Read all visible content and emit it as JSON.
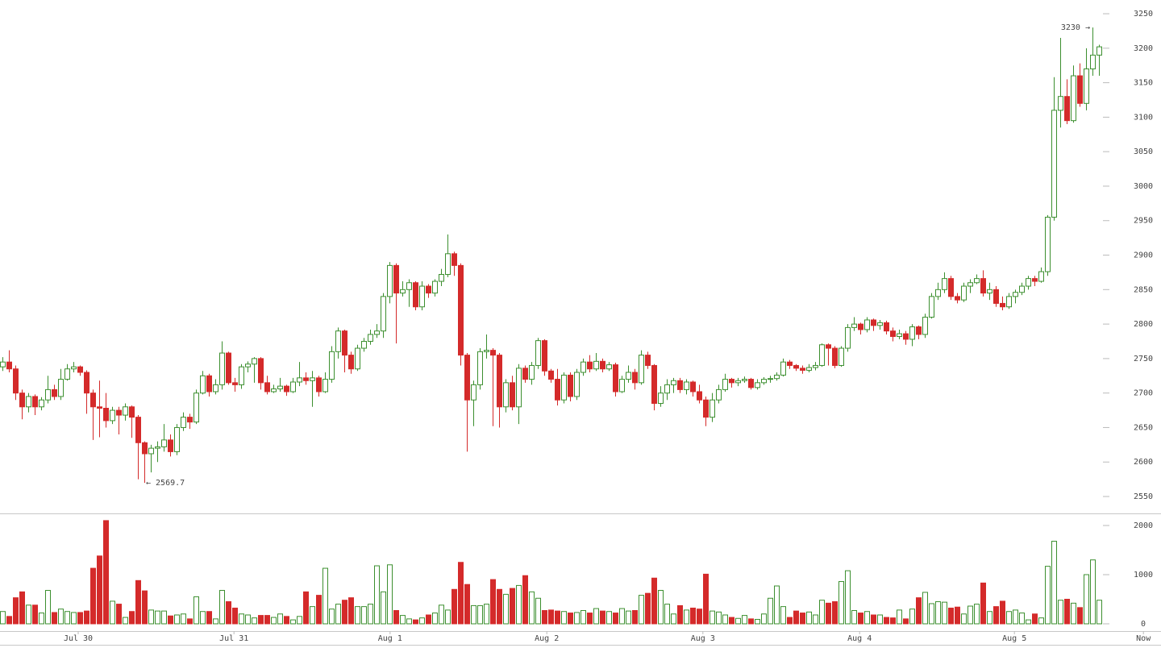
{
  "chart_data": {
    "type": "candlestick",
    "up_color": "#3c8f2f",
    "down_color": "#d42a2a",
    "xlim": [
      -0.375,
      179.625
    ],
    "xticks": [
      {
        "value": 11.75,
        "label": "Jul 30"
      },
      {
        "value": 35.9,
        "label": "Jul 31"
      },
      {
        "value": 60.1,
        "label": "Aug 1"
      },
      {
        "value": 84.4,
        "label": "Aug 2"
      },
      {
        "value": 108.6,
        "label": "Aug 3"
      },
      {
        "value": 132.9,
        "label": "Aug 4"
      },
      {
        "value": 156.9,
        "label": "Aug 5"
      },
      {
        "value": 176.9,
        "label": "Now"
      }
    ],
    "ylim": [
      2525.5,
      3269.9
    ],
    "yticks": [
      2550,
      2600,
      2650,
      2700,
      2750,
      2800,
      2850,
      2900,
      2950,
      3000,
      3050,
      3100,
      3150,
      3200,
      3250
    ],
    "y2lim": [
      -148,
      2197
    ],
    "y2ticks": [
      0,
      1000,
      2000
    ],
    "annotations": [
      {
        "text": "← 2569.7"
      },
      {
        "text": "3230 →"
      }
    ],
    "open": [
      2738,
      2745,
      2735,
      2700,
      2680,
      2695,
      2680,
      2690,
      2705,
      2695,
      2720,
      2735,
      2738,
      2730,
      2700,
      2680,
      2678,
      2660,
      2675,
      2668,
      2680,
      2665,
      2628,
      2612,
      2620,
      2622,
      2632,
      2615,
      2650,
      2665,
      2658,
      2700,
      2725,
      2702,
      2712,
      2758,
      2715,
      2712,
      2738,
      2742,
      2750,
      2715,
      2702,
      2706,
      2710,
      2702,
      2716,
      2722,
      2718,
      2722,
      2702,
      2720,
      2760,
      2790,
      2755,
      2735,
      2765,
      2775,
      2785,
      2790,
      2840,
      2885,
      2845,
      2850,
      2860,
      2825,
      2855,
      2845,
      2862,
      2872,
      2902,
      2885,
      2755,
      2690,
      2712,
      2760,
      2762,
      2755,
      2680,
      2715,
      2680,
      2736,
      2720,
      2740,
      2776,
      2732,
      2720,
      2690,
      2726,
      2695,
      2730,
      2745,
      2735,
      2746,
      2735,
      2741,
      2702,
      2720,
      2730,
      2715,
      2755,
      2740,
      2685,
      2700,
      2712,
      2718,
      2705,
      2716,
      2702,
      2690,
      2665,
      2690,
      2705,
      2720,
      2715,
      2718,
      2720,
      2708,
      2715,
      2720,
      2721,
      2726,
      2745,
      2740,
      2736,
      2733,
      2737,
      2740,
      2770,
      2765,
      2740,
      2765,
      2795,
      2800,
      2792,
      2806,
      2798,
      2802,
      2790,
      2782,
      2786,
      2778,
      2796,
      2785,
      2810,
      2840,
      2850,
      2866,
      2840,
      2835,
      2855,
      2860,
      2866,
      2845,
      2850,
      2830,
      2825,
      2840,
      2846,
      2855,
      2866,
      2862,
      2876,
      2955,
      3110,
      3130,
      3095,
      3160,
      3120,
      3170,
      3190
    ],
    "high": [
      2752,
      2762,
      2740,
      2705,
      2700,
      2698,
      2694,
      2725,
      2712,
      2735,
      2742,
      2745,
      2740,
      2733,
      2705,
      2718,
      2700,
      2680,
      2680,
      2685,
      2682,
      2668,
      2630,
      2625,
      2630,
      2655,
      2640,
      2655,
      2672,
      2670,
      2705,
      2732,
      2728,
      2720,
      2775,
      2760,
      2722,
      2742,
      2746,
      2752,
      2752,
      2725,
      2712,
      2722,
      2712,
      2722,
      2745,
      2730,
      2732,
      2725,
      2730,
      2768,
      2795,
      2792,
      2760,
      2770,
      2780,
      2792,
      2800,
      2845,
      2890,
      2888,
      2862,
      2865,
      2862,
      2862,
      2858,
      2865,
      2880,
      2930,
      2905,
      2888,
      2758,
      2718,
      2765,
      2785,
      2765,
      2758,
      2720,
      2725,
      2742,
      2740,
      2745,
      2780,
      2778,
      2735,
      2735,
      2730,
      2730,
      2735,
      2750,
      2755,
      2758,
      2750,
      2745,
      2744,
      2725,
      2740,
      2735,
      2762,
      2760,
      2742,
      2710,
      2720,
      2722,
      2722,
      2720,
      2718,
      2712,
      2695,
      2700,
      2712,
      2728,
      2722,
      2722,
      2724,
      2722,
      2720,
      2723,
      2725,
      2730,
      2750,
      2748,
      2742,
      2740,
      2742,
      2745,
      2772,
      2772,
      2768,
      2768,
      2800,
      2810,
      2802,
      2810,
      2808,
      2806,
      2805,
      2795,
      2792,
      2790,
      2800,
      2798,
      2815,
      2845,
      2860,
      2875,
      2870,
      2845,
      2860,
      2865,
      2872,
      2878,
      2860,
      2855,
      2840,
      2845,
      2850,
      2860,
      2870,
      2870,
      2882,
      2958,
      3158,
      3215,
      3155,
      3175,
      3178,
      3200,
      3230,
      3205
    ],
    "low": [
      2732,
      2730,
      2690,
      2662,
      2672,
      2668,
      2675,
      2685,
      2690,
      2690,
      2718,
      2730,
      2725,
      2670,
      2632,
      2636,
      2650,
      2655,
      2640,
      2660,
      2635,
      2575,
      2569.7,
      2585,
      2600,
      2615,
      2608,
      2610,
      2645,
      2648,
      2655,
      2698,
      2695,
      2698,
      2705,
      2712,
      2702,
      2706,
      2730,
      2715,
      2705,
      2698,
      2700,
      2702,
      2696,
      2700,
      2710,
      2712,
      2680,
      2695,
      2700,
      2715,
      2750,
      2730,
      2728,
      2732,
      2760,
      2770,
      2780,
      2780,
      2830,
      2772,
      2840,
      2825,
      2820,
      2820,
      2838,
      2840,
      2855,
      2868,
      2870,
      2740,
      2615,
      2652,
      2705,
      2750,
      2652,
      2650,
      2672,
      2675,
      2655,
      2715,
      2712,
      2735,
      2725,
      2715,
      2682,
      2685,
      2688,
      2690,
      2725,
      2730,
      2732,
      2730,
      2732,
      2695,
      2700,
      2715,
      2705,
      2712,
      2735,
      2675,
      2680,
      2690,
      2700,
      2700,
      2698,
      2695,
      2685,
      2652,
      2658,
      2685,
      2702,
      2708,
      2710,
      2715,
      2705,
      2705,
      2712,
      2715,
      2718,
      2724,
      2735,
      2732,
      2728,
      2730,
      2733,
      2738,
      2740,
      2736,
      2738,
      2760,
      2790,
      2785,
      2788,
      2790,
      2792,
      2785,
      2775,
      2778,
      2770,
      2768,
      2778,
      2780,
      2808,
      2835,
      2845,
      2835,
      2830,
      2832,
      2845,
      2858,
      2840,
      2835,
      2825,
      2820,
      2822,
      2830,
      2842,
      2850,
      2855,
      2860,
      2870,
      2950,
      3085,
      3090,
      3092,
      3115,
      3110,
      3160,
      3160
    ],
    "close": [
      2745,
      2735,
      2700,
      2680,
      2695,
      2680,
      2690,
      2705,
      2695,
      2720,
      2735,
      2738,
      2730,
      2700,
      2680,
      2678,
      2660,
      2675,
      2668,
      2680,
      2665,
      2628,
      2612,
      2620,
      2622,
      2632,
      2615,
      2650,
      2665,
      2658,
      2700,
      2725,
      2702,
      2712,
      2758,
      2715,
      2712,
      2738,
      2742,
      2750,
      2715,
      2702,
      2706,
      2710,
      2702,
      2716,
      2722,
      2718,
      2722,
      2702,
      2720,
      2760,
      2790,
      2755,
      2735,
      2765,
      2775,
      2785,
      2790,
      2840,
      2885,
      2845,
      2850,
      2860,
      2825,
      2855,
      2845,
      2862,
      2872,
      2902,
      2885,
      2755,
      2690,
      2712,
      2760,
      2762,
      2755,
      2680,
      2715,
      2680,
      2736,
      2720,
      2740,
      2776,
      2732,
      2720,
      2690,
      2726,
      2695,
      2730,
      2745,
      2735,
      2746,
      2735,
      2741,
      2702,
      2720,
      2730,
      2715,
      2755,
      2740,
      2685,
      2700,
      2712,
      2718,
      2705,
      2716,
      2702,
      2690,
      2665,
      2690,
      2705,
      2720,
      2715,
      2718,
      2720,
      2708,
      2715,
      2720,
      2721,
      2726,
      2745,
      2740,
      2736,
      2733,
      2737,
      2740,
      2770,
      2765,
      2740,
      2765,
      2795,
      2800,
      2792,
      2806,
      2798,
      2802,
      2790,
      2782,
      2786,
      2778,
      2796,
      2785,
      2810,
      2840,
      2850,
      2866,
      2840,
      2835,
      2855,
      2860,
      2866,
      2845,
      2850,
      2830,
      2825,
      2840,
      2846,
      2855,
      2866,
      2862,
      2876,
      2955,
      3110,
      3130,
      3095,
      3160,
      3120,
      3170,
      3190,
      3202
    ],
    "volume": [
      250,
      150,
      530,
      650,
      380,
      380,
      220,
      680,
      230,
      300,
      250,
      230,
      230,
      260,
      1130,
      1380,
      2100,
      460,
      400,
      130,
      250,
      880,
      670,
      280,
      260,
      260,
      160,
      180,
      200,
      100,
      550,
      250,
      250,
      100,
      680,
      450,
      320,
      200,
      180,
      120,
      170,
      170,
      130,
      200,
      150,
      80,
      150,
      650,
      350,
      580,
      1130,
      300,
      400,
      480,
      530,
      350,
      350,
      400,
      1180,
      650,
      1200,
      270,
      170,
      100,
      80,
      120,
      180,
      220,
      380,
      280,
      700,
      1250,
      800,
      370,
      370,
      400,
      900,
      700,
      600,
      720,
      780,
      980,
      650,
      520,
      270,
      280,
      260,
      250,
      220,
      230,
      270,
      220,
      310,
      260,
      250,
      220,
      310,
      260,
      270,
      580,
      620,
      930,
      680,
      400,
      200,
      370,
      280,
      320,
      300,
      1010,
      260,
      240,
      180,
      130,
      110,
      170,
      100,
      90,
      200,
      520,
      770,
      350,
      130,
      260,
      220,
      240,
      180,
      480,
      420,
      450,
      860,
      1080,
      270,
      220,
      250,
      180,
      180,
      130,
      120,
      280,
      100,
      300,
      530,
      640,
      410,
      450,
      440,
      320,
      340,
      200,
      360,
      400,
      830,
      250,
      350,
      460,
      250,
      280,
      220,
      80,
      200,
      120,
      1170,
      1680,
      480,
      500,
      420,
      330,
      1000,
      1300,
      480
    ]
  }
}
